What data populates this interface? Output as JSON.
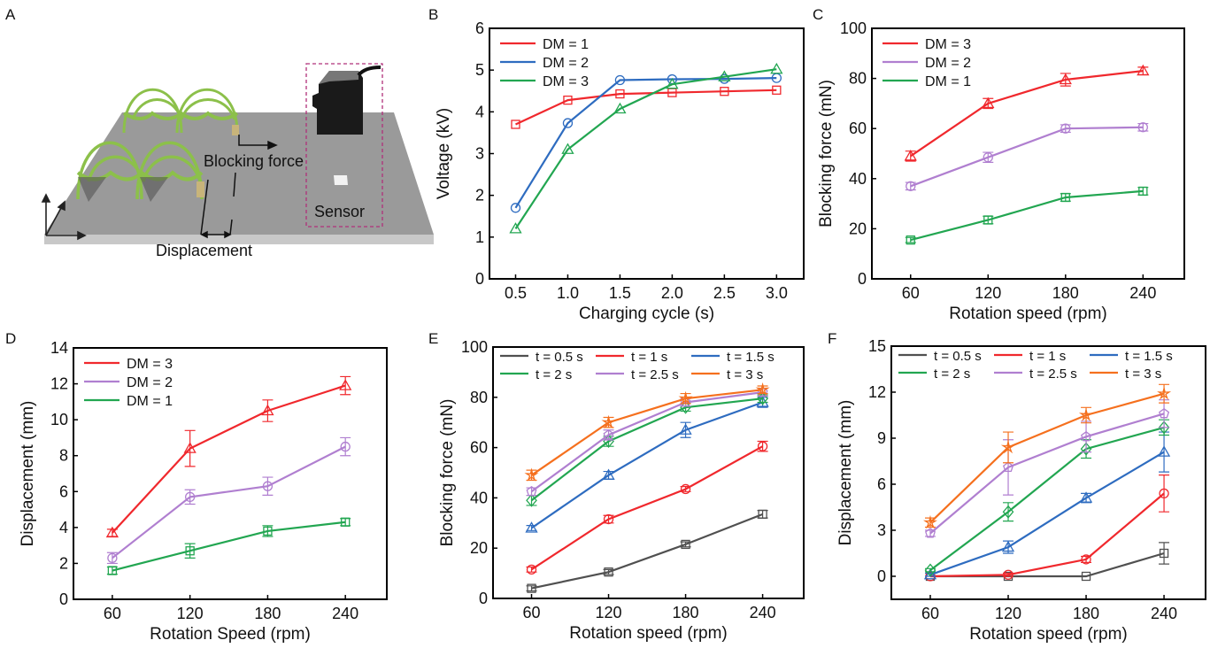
{
  "panel_a": {
    "letter": "A",
    "labels": {
      "blocking_force": "Blocking force",
      "displacement": "Displacement",
      "sensor": "Sensor"
    }
  },
  "colors": {
    "gray": "#505050",
    "red": "#f0282d",
    "blue": "#2e6cc0",
    "green": "#22a651",
    "purple": "#b07fd0",
    "orange": "#f5701e",
    "sensor_box": "#b0307a",
    "arch": "#8cc04a"
  },
  "chart_data": [
    {
      "id": "B",
      "letter": "B",
      "type": "line",
      "xlabel": "Charging cycle (s)",
      "ylabel": "Voltage (kV)",
      "x": [
        0.5,
        1.0,
        1.5,
        2.0,
        2.5,
        3.0
      ],
      "xticks": [
        "0.5",
        "1.0",
        "1.5",
        "2.0",
        "2.5",
        "3.0"
      ],
      "xlim": [
        0.25,
        3.26
      ],
      "ylim": [
        0,
        6
      ],
      "yticks": [
        0,
        1,
        2,
        3,
        4,
        5,
        6
      ],
      "legend": "top-left-vertical",
      "series": [
        {
          "name": "DM = 1",
          "color": "red",
          "marker": "square",
          "values": [
            3.7,
            4.28,
            4.43,
            4.46,
            4.49,
            4.52
          ]
        },
        {
          "name": "DM = 2",
          "color": "blue",
          "marker": "circle",
          "values": [
            1.7,
            3.73,
            4.76,
            4.78,
            4.79,
            4.81
          ]
        },
        {
          "name": "DM = 3",
          "color": "green",
          "marker": "triangle",
          "values": [
            1.2,
            3.1,
            4.07,
            4.66,
            4.84,
            5.02
          ]
        }
      ]
    },
    {
      "id": "C",
      "letter": "C",
      "type": "line",
      "xlabel": "Rotation speed (rpm)",
      "ylabel": "Blocking force (mN)",
      "x": [
        60,
        120,
        180,
        240
      ],
      "xticks": [
        "60",
        "120",
        "180",
        "240"
      ],
      "xlim": [
        30,
        272
      ],
      "ylim": [
        0,
        100
      ],
      "yticks": [
        0,
        20,
        40,
        60,
        80,
        100
      ],
      "legend": "top-left-vertical",
      "series": [
        {
          "name": "DM = 3",
          "color": "red",
          "marker": "triangle",
          "values": [
            49,
            70,
            79.5,
            83
          ],
          "errors": [
            2,
            2,
            2.5,
            1.5
          ]
        },
        {
          "name": "DM = 2",
          "color": "purple",
          "marker": "circle",
          "values": [
            37,
            48.5,
            60,
            60.5
          ],
          "errors": [
            1.5,
            2,
            1.5,
            1.5
          ]
        },
        {
          "name": "DM = 1",
          "color": "green",
          "marker": "square",
          "values": [
            15.5,
            23.5,
            32.5,
            35
          ],
          "errors": [
            1,
            1.5,
            1.5,
            1.5
          ]
        }
      ]
    },
    {
      "id": "D",
      "letter": "D",
      "type": "line",
      "xlabel": "Rotation Speed (rpm)",
      "ylabel": "Displacement (mm)",
      "x": [
        60,
        120,
        180,
        240
      ],
      "xticks": [
        "60",
        "120",
        "180",
        "240"
      ],
      "xlim": [
        30,
        272
      ],
      "ylim": [
        0,
        14
      ],
      "yticks": [
        0,
        2,
        4,
        6,
        8,
        10,
        12,
        14
      ],
      "legend": "top-left-vertical",
      "series": [
        {
          "name": "DM = 3",
          "color": "red",
          "marker": "triangle",
          "values": [
            3.7,
            8.4,
            10.5,
            11.9
          ],
          "errors": [
            0.2,
            1.0,
            0.6,
            0.5
          ]
        },
        {
          "name": "DM = 2",
          "color": "purple",
          "marker": "circle",
          "values": [
            2.3,
            5.7,
            6.3,
            8.5
          ],
          "errors": [
            0.3,
            0.4,
            0.5,
            0.5
          ]
        },
        {
          "name": "DM = 1",
          "color": "green",
          "marker": "square",
          "values": [
            1.6,
            2.7,
            3.8,
            4.3
          ],
          "errors": [
            0.2,
            0.4,
            0.3,
            0.2
          ]
        }
      ]
    },
    {
      "id": "E",
      "letter": "E",
      "type": "line",
      "xlabel": "Rotation speed (rpm)",
      "ylabel": "Blocking force (mN)",
      "x": [
        60,
        120,
        180,
        240
      ],
      "xticks": [
        "60",
        "120",
        "180",
        "240"
      ],
      "xlim": [
        30,
        272
      ],
      "ylim": [
        0,
        100
      ],
      "yticks": [
        0,
        20,
        40,
        60,
        80,
        100
      ],
      "legend": "top-grid-3x2",
      "series": [
        {
          "name": "t = 0.5 s",
          "color": "gray",
          "marker": "square",
          "values": [
            4,
            10.5,
            21.5,
            33.5
          ],
          "errors": [
            1,
            1,
            1,
            1.5
          ]
        },
        {
          "name": "t =   1  s",
          "color": "red",
          "marker": "circle",
          "values": [
            11.5,
            31.5,
            43.5,
            60.5
          ],
          "errors": [
            1,
            1.5,
            1,
            2
          ]
        },
        {
          "name": "t = 1.5 s",
          "color": "blue",
          "marker": "triangle",
          "values": [
            28,
            49,
            67,
            78
          ],
          "errors": [
            1,
            1.5,
            3,
            2
          ]
        },
        {
          "name": "t =  2   s",
          "color": "green",
          "marker": "diamond",
          "values": [
            39,
            62.5,
            76,
            79.5
          ],
          "errors": [
            2,
            2,
            1.5,
            1.5
          ]
        },
        {
          "name": "t = 2.5 s",
          "color": "purple",
          "marker": "pentagon",
          "values": [
            42.5,
            65,
            78,
            82
          ],
          "errors": [
            1.5,
            2,
            1.5,
            1.5
          ]
        },
        {
          "name": "t =   3  s",
          "color": "orange",
          "marker": "star",
          "values": [
            49,
            70,
            79.5,
            83
          ],
          "errors": [
            2,
            2,
            2,
            1.5
          ]
        }
      ]
    },
    {
      "id": "F",
      "letter": "F",
      "type": "line",
      "xlabel": "Rotation speed (rpm)",
      "ylabel": "Displacement (mm)",
      "x": [
        60,
        120,
        180,
        240
      ],
      "xticks": [
        "60",
        "120",
        "180",
        "240"
      ],
      "xlim": [
        30,
        272
      ],
      "ylim": [
        -1.5,
        15
      ],
      "yticks": [
        0,
        3,
        6,
        9,
        12,
        15
      ],
      "legend": "top-grid-3x2",
      "series": [
        {
          "name": "t = 0.5 s",
          "color": "gray",
          "marker": "square",
          "values": [
            0,
            0,
            0,
            1.5
          ],
          "errors": [
            0,
            0,
            0,
            0.7
          ]
        },
        {
          "name": "t =   1  s",
          "color": "red",
          "marker": "circle",
          "values": [
            0,
            0.1,
            1.1,
            5.4
          ],
          "errors": [
            0,
            0.1,
            0.2,
            1.2
          ]
        },
        {
          "name": "t = 1.5 s",
          "color": "blue",
          "marker": "triangle",
          "values": [
            0.1,
            1.9,
            5.1,
            8.1
          ],
          "errors": [
            0.1,
            0.4,
            0.3,
            1.3
          ]
        },
        {
          "name": "t =  2   s",
          "color": "green",
          "marker": "diamond",
          "values": [
            0.4,
            4.2,
            8.3,
            9.7
          ],
          "errors": [
            0.1,
            0.6,
            0.6,
            0.5
          ]
        },
        {
          "name": "t = 2.5 s",
          "color": "purple",
          "marker": "pentagon",
          "values": [
            2.8,
            7.1,
            9.1,
            10.6
          ],
          "errors": [
            0.2,
            1.8,
            1.0,
            0.9
          ]
        },
        {
          "name": "t =   3  s",
          "color": "orange",
          "marker": "star",
          "values": [
            3.5,
            8.4,
            10.5,
            11.9
          ],
          "errors": [
            0.3,
            1.0,
            0.5,
            0.6
          ]
        }
      ]
    }
  ]
}
